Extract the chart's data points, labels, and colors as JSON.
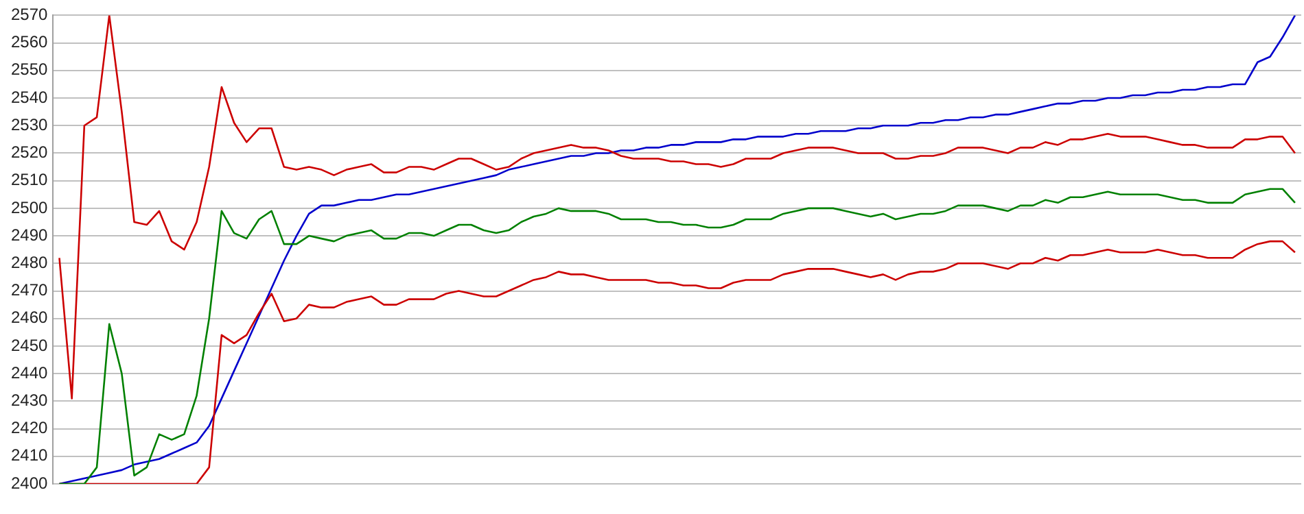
{
  "chart_data": {
    "type": "line",
    "categories": [
      null,
      null,
      null,
      null,
      null,
      null,
      null,
      null,
      null,
      null,
      null,
      null,
      null,
      null,
      null,
      null,
      null,
      null,
      null,
      null,
      null,
      null,
      null,
      null,
      null,
      null,
      null,
      null,
      null,
      null,
      null,
      null,
      null,
      null,
      null,
      null,
      null,
      null,
      null,
      null,
      null,
      null,
      null,
      null,
      null,
      null,
      null,
      null,
      null,
      null,
      null,
      null,
      null,
      null,
      null,
      null,
      null,
      null,
      null,
      null,
      null,
      null,
      null,
      null,
      null,
      null,
      null,
      null,
      null,
      null,
      null,
      null,
      null,
      null,
      null,
      null,
      null,
      null,
      null,
      null,
      null,
      null,
      null,
      null,
      null,
      null,
      null,
      null,
      null,
      null,
      null,
      null,
      null,
      null,
      null,
      null,
      null,
      null,
      null,
      null
    ],
    "series": [
      {
        "color": "#cc0000",
        "values": [
          2482,
          2431,
          2530,
          2533,
          2570,
          2535,
          2495,
          2494,
          2499,
          2488,
          2485,
          2495,
          2515,
          2544,
          2531,
          2524,
          2529,
          2529,
          2515,
          2514,
          2515,
          2514,
          2512,
          2514,
          2515,
          2516,
          2513,
          2513,
          2515,
          2515,
          2514,
          2516,
          2518,
          2518,
          2516,
          2514,
          2515,
          2518,
          2520,
          2521,
          2522,
          2523,
          2522,
          2522,
          2521,
          2519,
          2518,
          2518,
          2518,
          2517,
          2517,
          2516,
          2516,
          2515,
          2516,
          2518,
          2518,
          2518,
          2520,
          2521,
          2522,
          2522,
          2522,
          2521,
          2520,
          2520,
          2520,
          2518,
          2518,
          2519,
          2519,
          2520,
          2522,
          2522,
          2522,
          2521,
          2520,
          2522,
          2522,
          2524,
          2523,
          2525,
          2525,
          2526,
          2527,
          2526,
          2526,
          2526,
          2525,
          2524,
          2523,
          2523,
          2522,
          2522,
          2522,
          2525,
          2525,
          2526,
          2526,
          2520
        ]
      },
      {
        "color": "#008000",
        "values": [
          2400,
          2400,
          2400,
          2406,
          2458,
          2440,
          2403,
          2406,
          2418,
          2416,
          2418,
          2432,
          2460,
          2499,
          2491,
          2489,
          2496,
          2499,
          2487,
          2487,
          2490,
          2489,
          2488,
          2490,
          2491,
          2492,
          2489,
          2489,
          2491,
          2491,
          2490,
          2492,
          2494,
          2494,
          2492,
          2491,
          2492,
          2495,
          2497,
          2498,
          2500,
          2499,
          2499,
          2499,
          2498,
          2496,
          2496,
          2496,
          2495,
          2495,
          2494,
          2494,
          2493,
          2493,
          2494,
          2496,
          2496,
          2496,
          2498,
          2499,
          2500,
          2500,
          2500,
          2499,
          2498,
          2497,
          2498,
          2496,
          2497,
          2498,
          2498,
          2499,
          2501,
          2501,
          2501,
          2500,
          2499,
          2501,
          2501,
          2503,
          2502,
          2504,
          2504,
          2505,
          2506,
          2505,
          2505,
          2505,
          2505,
          2504,
          2503,
          2503,
          2502,
          2502,
          2502,
          2505,
          2506,
          2507,
          2507,
          2502
        ]
      },
      {
        "color": "#cc0000",
        "values": [
          2400,
          2400,
          2400,
          2400,
          2400,
          2400,
          2400,
          2400,
          2400,
          2400,
          2400,
          2400,
          2406,
          2454,
          2451,
          2454,
          2462,
          2469,
          2459,
          2460,
          2465,
          2464,
          2464,
          2466,
          2467,
          2468,
          2465,
          2465,
          2467,
          2467,
          2467,
          2469,
          2470,
          2469,
          2468,
          2468,
          2470,
          2472,
          2474,
          2475,
          2477,
          2476,
          2476,
          2475,
          2474,
          2474,
          2474,
          2474,
          2473,
          2473,
          2472,
          2472,
          2471,
          2471,
          2473,
          2474,
          2474,
          2474,
          2476,
          2477,
          2478,
          2478,
          2478,
          2477,
          2476,
          2475,
          2476,
          2474,
          2476,
          2477,
          2477,
          2478,
          2480,
          2480,
          2480,
          2479,
          2478,
          2480,
          2480,
          2482,
          2481,
          2483,
          2483,
          2484,
          2485,
          2484,
          2484,
          2484,
          2485,
          2484,
          2483,
          2483,
          2482,
          2482,
          2482,
          2485,
          2487,
          2488,
          2488,
          2484
        ]
      },
      {
        "color": "#0000cc",
        "values": [
          2400,
          2401,
          2402,
          2403,
          2404,
          2405,
          2407,
          2408,
          2409,
          2411,
          2413,
          2415,
          2421,
          2431,
          2441,
          2451,
          2461,
          2471,
          2481,
          2490,
          2498,
          2501,
          2501,
          2502,
          2503,
          2503,
          2504,
          2505,
          2505,
          2506,
          2507,
          2508,
          2509,
          2510,
          2511,
          2512,
          2514,
          2515,
          2516,
          2517,
          2518,
          2519,
          2519,
          2520,
          2520,
          2521,
          2521,
          2522,
          2522,
          2523,
          2523,
          2524,
          2524,
          2524,
          2525,
          2525,
          2526,
          2526,
          2526,
          2527,
          2527,
          2528,
          2528,
          2528,
          2529,
          2529,
          2530,
          2530,
          2530,
          2531,
          2531,
          2532,
          2532,
          2533,
          2533,
          2534,
          2534,
          2535,
          2536,
          2537,
          2538,
          2538,
          2539,
          2539,
          2540,
          2540,
          2541,
          2541,
          2542,
          2542,
          2543,
          2543,
          2544,
          2544,
          2545,
          2545,
          2553,
          2555,
          2562,
          2570
        ]
      }
    ],
    "ylim": [
      2400,
      2570
    ],
    "yticks": [
      2400,
      2410,
      2420,
      2430,
      2440,
      2450,
      2460,
      2470,
      2480,
      2490,
      2500,
      2510,
      2520,
      2530,
      2540,
      2550,
      2560,
      2570
    ],
    "grid": "y",
    "tick_labels": "y",
    "marker": "none",
    "line_style": "solid"
  }
}
